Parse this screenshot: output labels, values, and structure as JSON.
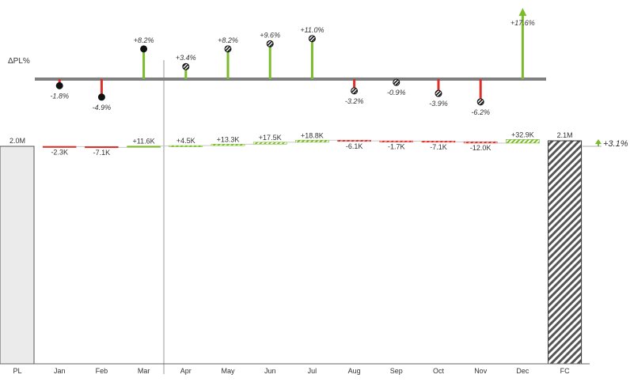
{
  "chart_data": [
    {
      "type": "lollipop",
      "ylabel": "ΔPL%",
      "categories": [
        "Jan",
        "Feb",
        "Mar",
        "Apr",
        "May",
        "Jun",
        "Jul",
        "Aug",
        "Sep",
        "Oct",
        "Nov",
        "Dec"
      ],
      "values": [
        -1.8,
        -4.9,
        8.2,
        3.4,
        8.2,
        9.6,
        11.0,
        -3.2,
        -0.9,
        -3.9,
        -6.2,
        17.6
      ],
      "labels": [
        "-1.8%",
        "-4.9%",
        "+8.2%",
        "+3.4%",
        "+8.2%",
        "+9.6%",
        "+11.0%",
        "-3.2%",
        "-0.9%",
        "-3.9%",
        "-6.2%",
        "+17.6%"
      ],
      "marker": [
        "solid",
        "solid",
        "solid",
        "hatched",
        "hatched",
        "hatched",
        "hatched",
        "hatched",
        "hatched",
        "hatched",
        "hatched",
        "arrow"
      ],
      "ylim": [
        -7,
        18.5
      ]
    },
    {
      "type": "waterfall",
      "categories": [
        "PL",
        "Jan",
        "Feb",
        "Mar",
        "Apr",
        "May",
        "Jun",
        "Jul",
        "Aug",
        "Sep",
        "Oct",
        "Nov",
        "Dec",
        "FC"
      ],
      "start": {
        "label": "PL",
        "value": 2.0,
        "display": "2.0M"
      },
      "end": {
        "label": "FC",
        "value": 2.1,
        "display": "2.1M"
      },
      "deltas": [
        -2.3,
        -7.1,
        11.6,
        4.5,
        13.3,
        17.5,
        18.8,
        -6.1,
        -1.7,
        -7.1,
        -12.0,
        32.9
      ],
      "delta_unit": "K",
      "delta_labels": [
        "-2.3K",
        "-7.1K",
        "+11.6K",
        "+4.5K",
        "+13.3K",
        "+17.5K",
        "+18.8K",
        "-6.1K",
        "-1.7K",
        "-7.1K",
        "-12.0K",
        "+32.9K"
      ],
      "style": [
        "actual",
        "actual",
        "actual",
        "forecast",
        "forecast",
        "forecast",
        "forecast",
        "forecast",
        "forecast",
        "forecast",
        "forecast",
        "forecast"
      ],
      "total_change": "+3.1%"
    }
  ],
  "colors": {
    "positive": "#7cbb2c",
    "negative": "#d9302a",
    "axis": "#808080",
    "plan_fill": "#ebebeb",
    "forecast_hatch": "#555555",
    "divider": "#9a9a9a"
  }
}
